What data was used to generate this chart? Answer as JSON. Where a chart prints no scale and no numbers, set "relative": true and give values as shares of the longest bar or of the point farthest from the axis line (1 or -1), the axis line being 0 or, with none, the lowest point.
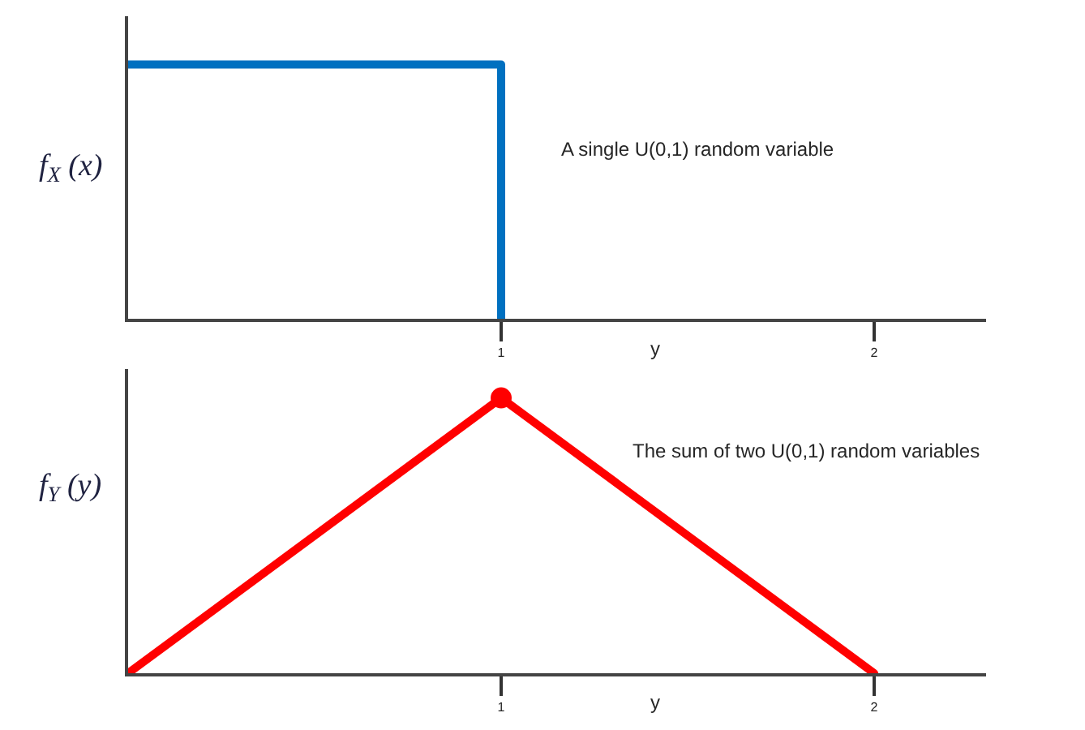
{
  "chart_data": [
    {
      "type": "step",
      "x": [
        0,
        1
      ],
      "relative": true,
      "xlim": [
        0,
        2.3
      ],
      "xticks": [
        1,
        2
      ],
      "xlabel": "y",
      "ylabel": "f$_{X}$ (x)",
      "annotations": [
        "A single U(0,1) random variable"
      ],
      "series": [
        {
          "color": "#0070c0",
          "values": [
            1,
            0
          ]
        }
      ]
    },
    {
      "type": "line",
      "x": [
        0,
        1,
        2
      ],
      "relative": true,
      "xlim": [
        0,
        2.3
      ],
      "xticks": [
        1,
        2
      ],
      "xlabel": "y",
      "ylabel": "f$_{Y}$ (y)",
      "annotations": [
        "The sum of two U(0,1) random variables"
      ],
      "series": [
        {
          "color": "#ff0000",
          "values": [
            0,
            1,
            0
          ]
        },
        {
          "type": "scatter",
          "x": [
            1
          ],
          "color": "#ff0000",
          "values": [
            1
          ],
          "marker": "circle"
        }
      ]
    }
  ]
}
